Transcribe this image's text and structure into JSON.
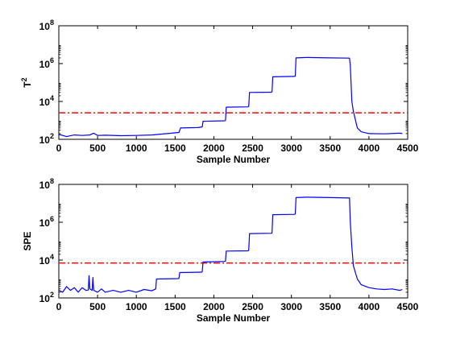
{
  "chart_data": [
    {
      "type": "line",
      "ylabel": "T",
      "ylabel_sup": "2",
      "xlabel": "Sample Number",
      "xlim": [
        0,
        4500
      ],
      "ylim": [
        100,
        100000000
      ],
      "yscale": "log",
      "xticks": [
        "0",
        "500",
        "1000",
        "1500",
        "2000",
        "2500",
        "3000",
        "3500",
        "4000",
        "4500"
      ],
      "yticks": [
        {
          "base": "10",
          "exp": "2"
        },
        {
          "base": "10",
          "exp": "4"
        },
        {
          "base": "10",
          "exp": "6"
        },
        {
          "base": "10",
          "exp": "8"
        }
      ],
      "threshold": 2500,
      "series_color": "#0000ff",
      "threshold_color": "#ff0000",
      "series": [
        {
          "points": [
            [
              0,
              180
            ],
            [
              50,
              160
            ],
            [
              100,
              140
            ],
            [
              200,
              170
            ],
            [
              300,
              160
            ],
            [
              400,
              170
            ],
            [
              450,
              210
            ],
            [
              500,
              160
            ],
            [
              600,
              165
            ],
            [
              800,
              155
            ],
            [
              1000,
              160
            ],
            [
              1200,
              170
            ],
            [
              1400,
              200
            ],
            [
              1550,
              230
            ],
            [
              1570,
              400
            ],
            [
              1800,
              420
            ],
            [
              1850,
              450
            ],
            [
              1860,
              900
            ],
            [
              2140,
              950
            ],
            [
              2150,
              1000
            ],
            [
              2160,
              5000
            ],
            [
              2440,
              5200
            ],
            [
              2450,
              5500
            ],
            [
              2460,
              30000
            ],
            [
              2740,
              31000
            ],
            [
              2750,
              32000
            ],
            [
              2760,
              200000
            ],
            [
              3040,
              210000
            ],
            [
              3050,
              220000
            ],
            [
              3060,
              2000000
            ],
            [
              3200,
              2100000
            ],
            [
              3500,
              2000000
            ],
            [
              3750,
              1950000
            ],
            [
              3760,
              800000
            ],
            [
              3780,
              10000
            ],
            [
              3800,
              3000
            ],
            [
              3850,
              400
            ],
            [
              3900,
              250
            ],
            [
              4000,
              200
            ],
            [
              4200,
              195
            ],
            [
              4400,
              210
            ],
            [
              4430,
              200
            ]
          ]
        }
      ]
    },
    {
      "type": "line",
      "ylabel": "SPE",
      "xlabel": "Sample Number",
      "xlim": [
        0,
        4500
      ],
      "ylim": [
        100,
        100000000
      ],
      "yscale": "log",
      "xticks": [
        "0",
        "500",
        "1000",
        "1500",
        "2000",
        "2500",
        "3000",
        "3500",
        "4000",
        "4500"
      ],
      "yticks": [
        {
          "base": "10",
          "exp": "2"
        },
        {
          "base": "10",
          "exp": "4"
        },
        {
          "base": "10",
          "exp": "6"
        },
        {
          "base": "10",
          "exp": "8"
        }
      ],
      "threshold": 7000,
      "series_color": "#0000ff",
      "threshold_color": "#ff0000",
      "series": [
        {
          "points": [
            [
              0,
              250
            ],
            [
              50,
              200
            ],
            [
              100,
              400
            ],
            [
              150,
              250
            ],
            [
              200,
              350
            ],
            [
              250,
              200
            ],
            [
              300,
              350
            ],
            [
              350,
              250
            ],
            [
              380,
              260
            ],
            [
              390,
              1500
            ],
            [
              400,
              300
            ],
            [
              430,
              250
            ],
            [
              440,
              1200
            ],
            [
              450,
              250
            ],
            [
              500,
              200
            ],
            [
              550,
              300
            ],
            [
              600,
              200
            ],
            [
              700,
              250
            ],
            [
              800,
              200
            ],
            [
              900,
              250
            ],
            [
              1000,
              200
            ],
            [
              1100,
              280
            ],
            [
              1200,
              240
            ],
            [
              1250,
              300
            ],
            [
              1260,
              1000
            ],
            [
              1540,
              1050
            ],
            [
              1550,
              1100
            ],
            [
              1560,
              2200
            ],
            [
              1840,
              2300
            ],
            [
              1850,
              2400
            ],
            [
              1860,
              8000
            ],
            [
              2140,
              8500
            ],
            [
              2150,
              9000
            ],
            [
              2160,
              30000
            ],
            [
              2440,
              31000
            ],
            [
              2450,
              33000
            ],
            [
              2460,
              250000
            ],
            [
              2740,
              260000
            ],
            [
              2750,
              270000
            ],
            [
              2760,
              2500000
            ],
            [
              3040,
              2600000
            ],
            [
              3050,
              2800000
            ],
            [
              3060,
              20000000
            ],
            [
              3200,
              21000000
            ],
            [
              3500,
              20000000
            ],
            [
              3750,
              19000000
            ],
            [
              3760,
              1000000
            ],
            [
              3780,
              50000
            ],
            [
              3800,
              5000
            ],
            [
              3850,
              1000
            ],
            [
              3900,
              500
            ],
            [
              4000,
              350
            ],
            [
              4100,
              300
            ],
            [
              4200,
              280
            ],
            [
              4300,
              300
            ],
            [
              4400,
              250
            ],
            [
              4430,
              280
            ]
          ]
        }
      ]
    }
  ]
}
